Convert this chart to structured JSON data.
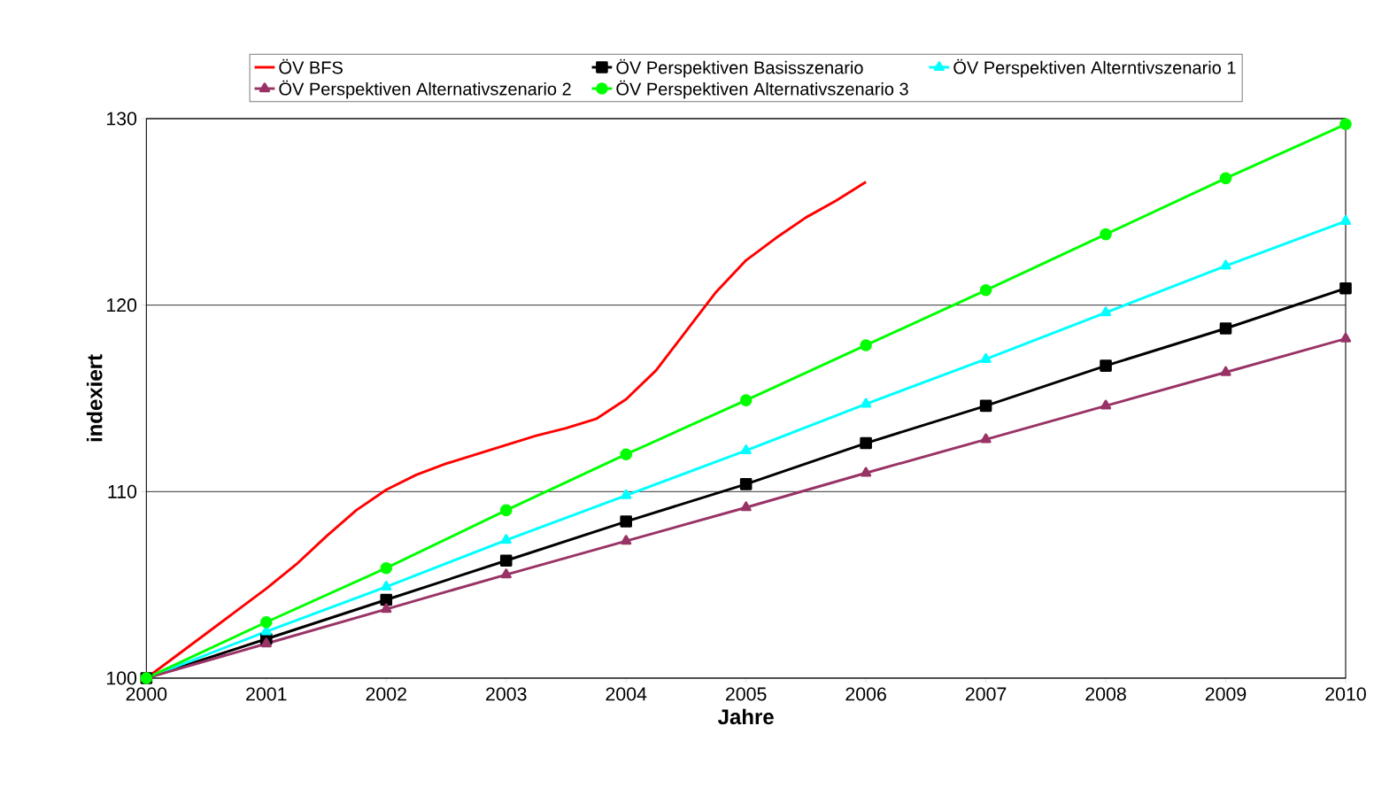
{
  "chart_data": {
    "type": "line",
    "xlabel": "Jahre",
    "ylabel": "indexiert",
    "x": [
      2000,
      2001,
      2002,
      2003,
      2004,
      2005,
      2006,
      2007,
      2008,
      2009,
      2010
    ],
    "xlim": [
      2000,
      2010
    ],
    "xticks": [
      2000,
      2001,
      2002,
      2003,
      2004,
      2005,
      2006,
      2007,
      2008,
      2009,
      2010
    ],
    "ylim": [
      100,
      130
    ],
    "yticks": [
      100,
      110,
      120,
      130
    ],
    "grid": "y",
    "legend": "top",
    "line_style": "solid",
    "series": [
      {
        "name": "ÖV BFS",
        "color": "#ff0000",
        "marker": "none",
        "x": [
          2000,
          2000.25,
          2000.5,
          2000.75,
          2001,
          2001.25,
          2001.5,
          2001.75,
          2002,
          2002.25,
          2002.5,
          2002.75,
          2003,
          2003.25,
          2003.5,
          2003.75,
          2004,
          2004.25,
          2004.5,
          2004.75,
          2005,
          2005.25,
          2005.5,
          2005.75,
          2006
        ],
        "values": [
          100,
          101.2,
          102.4,
          103.6,
          104.8,
          106.1,
          107.6,
          109,
          110.1,
          110.9,
          111.5,
          112,
          112.5,
          113,
          113.4,
          113.9,
          114.95,
          116.5,
          118.6,
          120.7,
          122.4,
          123.6,
          124.7,
          125.6,
          126.6
        ]
      },
      {
        "name": "ÖV Perspektiven Basisszenario",
        "color": "#000000",
        "marker": "square",
        "values": [
          100,
          102.1,
          104.2,
          106.3,
          108.4,
          110.4,
          112.6,
          114.6,
          116.75,
          118.75,
          120.9
        ]
      },
      {
        "name": "ÖV Perspektiven Alterntivszenario 1",
        "color": "#00ffff",
        "marker": "triangle",
        "values": [
          100,
          102.5,
          104.9,
          107.4,
          109.8,
          112.2,
          114.7,
          117.1,
          119.6,
          122.1,
          124.5
        ]
      },
      {
        "name": "ÖV Perspektiven Alternativszenario 2",
        "color": "#993366",
        "marker": "triangle",
        "values": [
          100,
          101.85,
          103.7,
          105.55,
          107.35,
          109.15,
          111.0,
          112.8,
          114.6,
          116.4,
          118.2
        ]
      },
      {
        "name": "ÖV Perspektiven Alternativszenario 3",
        "color": "#00ff00",
        "marker": "circle",
        "values": [
          100,
          103.0,
          105.9,
          109.0,
          112.0,
          114.9,
          117.85,
          120.8,
          123.8,
          126.8,
          129.7
        ]
      }
    ]
  }
}
